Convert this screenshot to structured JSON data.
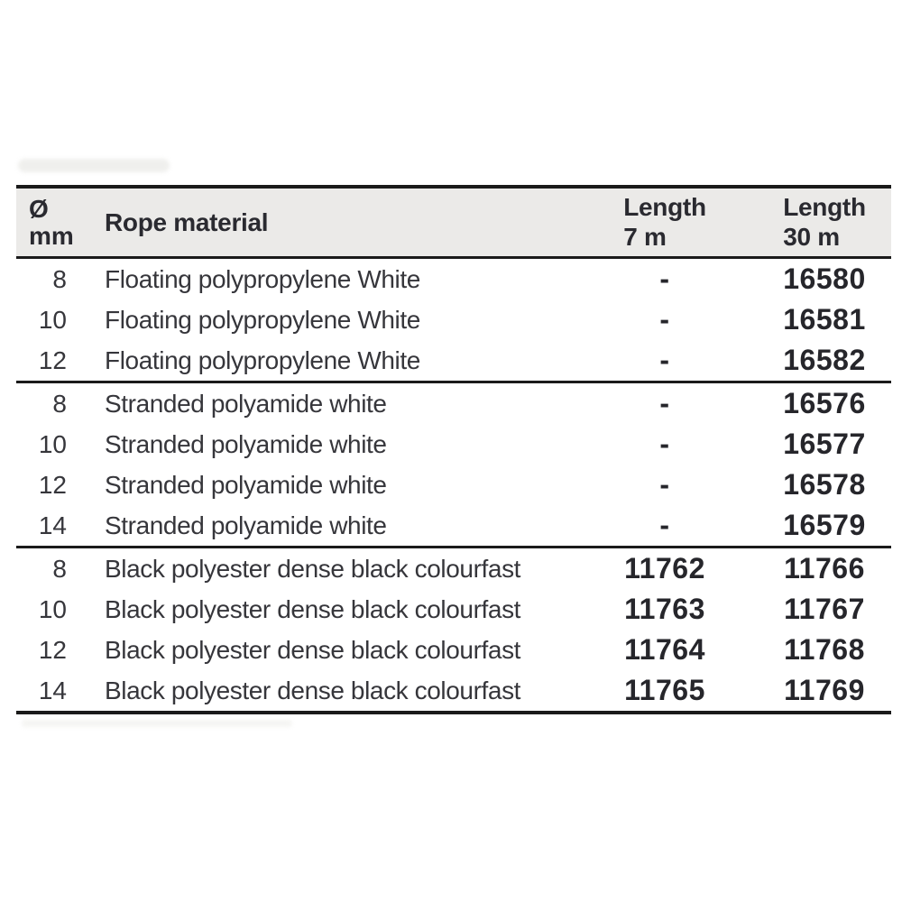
{
  "table": {
    "header": {
      "diameter_symbol": "Ø",
      "diameter_unit": "mm",
      "material_label": "Rope material",
      "length7_label": "Length",
      "length7_value": "7 m",
      "length30_label": "Length",
      "length30_value": "30 m"
    },
    "colors": {
      "header_bg": "#ebeae8",
      "rule": "#1a1a1a",
      "header_text": "#2a2a30",
      "text": "#36363b",
      "code_text": "#26262b"
    },
    "sections": [
      {
        "rows": [
          {
            "dia": "8",
            "material": "Floating polypropylene White",
            "len7": "-",
            "len30": "16580"
          },
          {
            "dia": "10",
            "material": "Floating polypropylene White",
            "len7": "-",
            "len30": "16581"
          },
          {
            "dia": "12",
            "material": "Floating polypropylene White",
            "len7": "-",
            "len30": "16582"
          }
        ]
      },
      {
        "rows": [
          {
            "dia": "8",
            "material": "Stranded polyamide white",
            "len7": "-",
            "len30": "16576"
          },
          {
            "dia": "10",
            "material": "Stranded polyamide white",
            "len7": "-",
            "len30": "16577"
          },
          {
            "dia": "12",
            "material": "Stranded polyamide white",
            "len7": "-",
            "len30": "16578"
          },
          {
            "dia": "14",
            "material": "Stranded polyamide white",
            "len7": "-",
            "len30": "16579"
          }
        ]
      },
      {
        "rows": [
          {
            "dia": "8",
            "material": "Black polyester dense black colourfast",
            "len7": "11762",
            "len30": "11766"
          },
          {
            "dia": "10",
            "material": "Black polyester dense black colourfast",
            "len7": "11763",
            "len30": "11767"
          },
          {
            "dia": "12",
            "material": "Black polyester dense black colourfast",
            "len7": "11764",
            "len30": "11768"
          },
          {
            "dia": "14",
            "material": "Black polyester dense black colourfast",
            "len7": "11765",
            "len30": "11769"
          }
        ]
      }
    ]
  }
}
